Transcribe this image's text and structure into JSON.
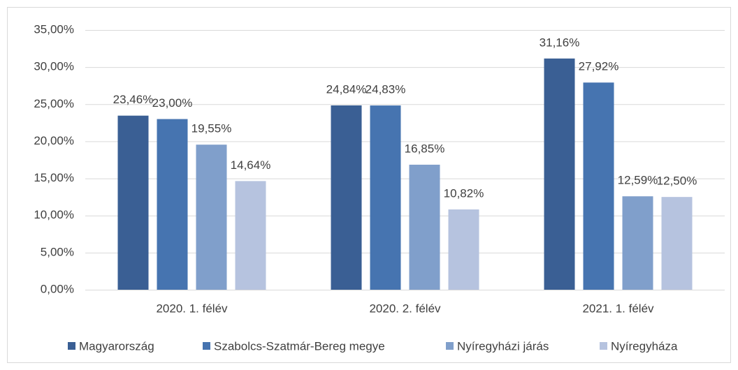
{
  "chart_data": {
    "type": "bar",
    "categories": [
      "2020. 1. félév",
      "2020. 2. félév",
      "2021. 1. félév"
    ],
    "series": [
      {
        "name": "Magyarország",
        "color": "#3a5f94",
        "values": [
          23.46,
          24.84,
          31.16
        ],
        "value_labels": [
          "23,46%",
          "24,84%",
          "31,16%"
        ]
      },
      {
        "name": "Szabolcs-Szatmár-Bereg megye",
        "color": "#4674b0",
        "values": [
          23.0,
          24.83,
          27.92
        ],
        "value_labels": [
          "23,00%",
          "24,83%",
          "27,92%"
        ]
      },
      {
        "name": "Nyíregyházi járás",
        "color": "#809fcb",
        "values": [
          19.55,
          16.85,
          12.59
        ],
        "value_labels": [
          "19,55%",
          "16,85%",
          "12,59%"
        ]
      },
      {
        "name": "Nyíregyháza",
        "color": "#b6c3df",
        "values": [
          14.64,
          10.82,
          12.5
        ],
        "value_labels": [
          "14,64%",
          "10,82%",
          "12,50%"
        ]
      }
    ],
    "ylim": [
      0,
      35
    ],
    "yticks": [
      {
        "value": 0,
        "label": "0,00%"
      },
      {
        "value": 5,
        "label": "5,00%"
      },
      {
        "value": 10,
        "label": "10,00%"
      },
      {
        "value": 15,
        "label": "15,00%"
      },
      {
        "value": 20,
        "label": "20,00%"
      },
      {
        "value": 25,
        "label": "25,00%"
      },
      {
        "value": 30,
        "label": "30,00%"
      },
      {
        "value": 35,
        "label": "35,00%"
      }
    ],
    "grid": true,
    "legend": "bottom"
  }
}
